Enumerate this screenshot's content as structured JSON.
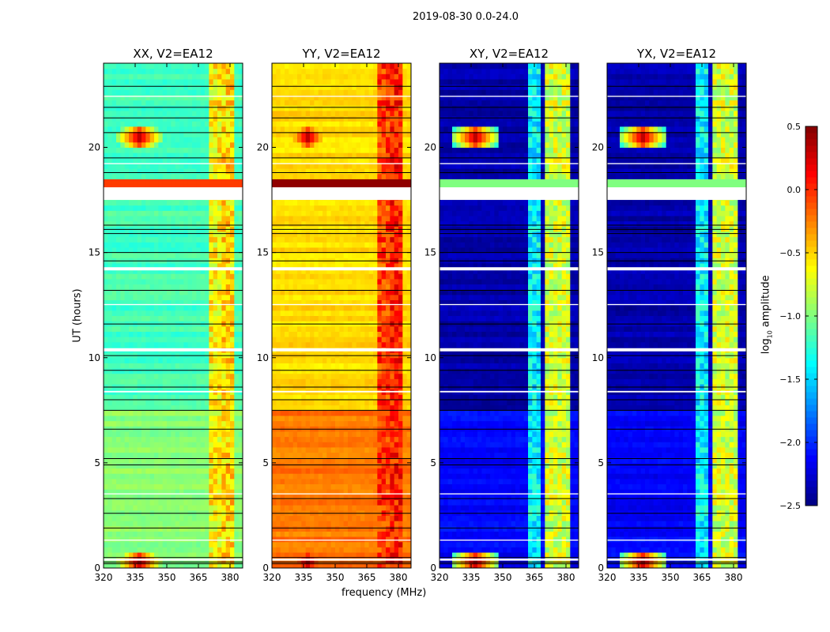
{
  "chart_data": {
    "type": "heatmap",
    "suptitle": "2019-08-30 0.0-24.0",
    "xlabel": "frequency (MHz)",
    "ylabel": "UT (hours)",
    "xlim": [
      320,
      386
    ],
    "ylim": [
      0,
      24
    ],
    "xticks": [
      "320",
      "335",
      "350",
      "365",
      "380"
    ],
    "yticks": [
      "0",
      "5",
      "10",
      "15",
      "20"
    ],
    "colorbar": {
      "label_prefix": "log",
      "label_sub": "10",
      "label_suffix": " amplitude",
      "clim": [
        -2.5,
        0.5
      ],
      "ticks": [
        "0.5",
        "0.0",
        "−0.5",
        "−1.0",
        "−1.5",
        "−2.0",
        "−2.5"
      ],
      "colormap": "jet"
    },
    "flagged_white_hours": [
      [
        17.5,
        18.1
      ],
      [
        0.35,
        0.45
      ],
      [
        1.3,
        1.35
      ],
      [
        3.5,
        3.55
      ],
      [
        8.35,
        8.42
      ],
      [
        10.3,
        10.45
      ],
      [
        12.5,
        12.55
      ],
      [
        14.15,
        14.3
      ],
      [
        19.2,
        19.25
      ],
      [
        22.4,
        22.45
      ]
    ],
    "dropout_black_hours": [
      0.2,
      0.28,
      0.5,
      1.9,
      2.6,
      3.3,
      4.9,
      5.2,
      6.6,
      7.5,
      8.0,
      8.6,
      9.4,
      10.1,
      11.6,
      13.2,
      14.6,
      15.0,
      15.9,
      16.1,
      16.3,
      18.8,
      19.5,
      20.7,
      21.4,
      21.9,
      22.9
    ],
    "panels": [
      {
        "title": "XX, V2=EA12",
        "base": -1.25,
        "early_base": -1.05,
        "rfi_band_level": -0.05,
        "channel_bands": [
          [
            371,
            376,
            -0.6
          ],
          [
            377,
            381,
            -0.5
          ]
        ],
        "spike_freq": 337,
        "spike_hours": [
          20.5,
          0.3
        ]
      },
      {
        "title": "YY, V2=EA12",
        "base": -0.6,
        "early_base": -0.3,
        "rfi_band_level": 0.45,
        "channel_bands": [
          [
            371,
            376,
            -0.05
          ],
          [
            377,
            381,
            0.05
          ]
        ],
        "spike_freq": 337,
        "spike_hours": [
          20.5,
          0.3
        ]
      },
      {
        "title": "XY, V2=EA12",
        "base": -2.45,
        "early_base": -2.2,
        "rfi_band_level": -1.0,
        "channel_bands": [
          [
            363,
            368,
            -1.4
          ],
          [
            371,
            376,
            -0.75
          ],
          [
            377,
            381,
            -0.75
          ]
        ],
        "spike_freq": 337,
        "spike_hours": [
          20.5,
          0.3
        ]
      },
      {
        "title": "YX, V2=EA12",
        "base": -2.45,
        "early_base": -2.2,
        "rfi_band_level": -1.0,
        "channel_bands": [
          [
            363,
            368,
            -1.4
          ],
          [
            371,
            376,
            -0.75
          ],
          [
            377,
            381,
            -0.75
          ]
        ],
        "spike_freq": 337,
        "spike_hours": [
          20.5,
          0.3
        ]
      }
    ]
  }
}
